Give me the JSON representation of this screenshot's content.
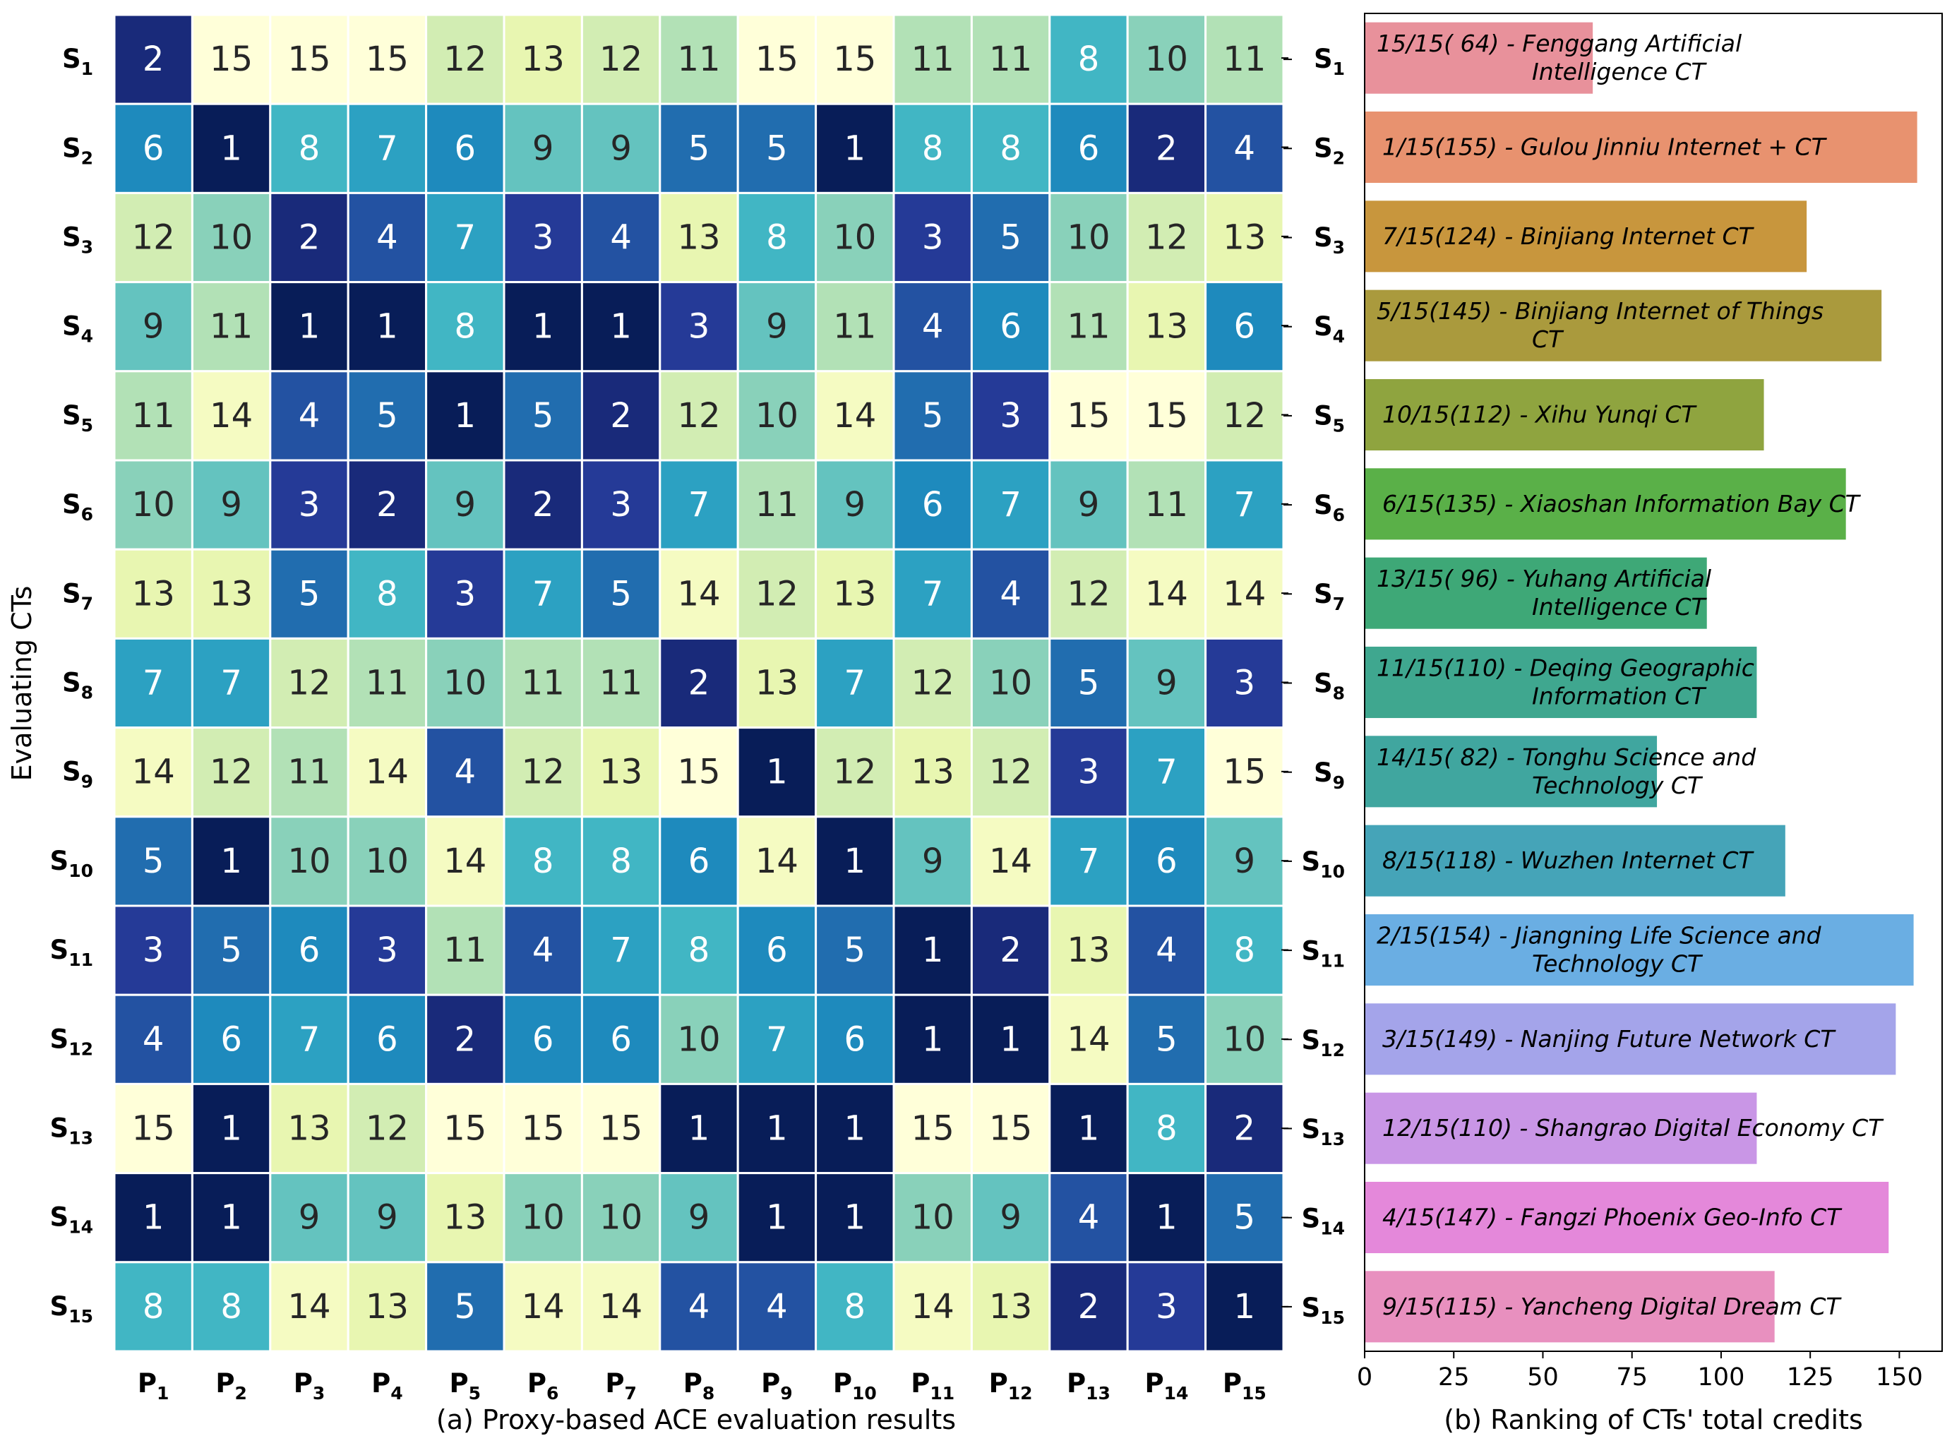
{
  "chart_data": [
    {
      "type": "heatmap",
      "title": "(a) Proxy-based ACE evaluation results",
      "ylabel": "Evaluating CTs",
      "rows": [
        "S1",
        "S2",
        "S3",
        "S4",
        "S5",
        "S6",
        "S7",
        "S8",
        "S9",
        "S10",
        "S11",
        "S12",
        "S13",
        "S14",
        "S15"
      ],
      "cols": [
        "P1",
        "P2",
        "P3",
        "P4",
        "P5",
        "P6",
        "P7",
        "P8",
        "P9",
        "P10",
        "P11",
        "P12",
        "P13",
        "P14",
        "P15"
      ],
      "values": [
        [
          2,
          15,
          15,
          15,
          12,
          13,
          12,
          11,
          15,
          15,
          11,
          11,
          8,
          10,
          11
        ],
        [
          6,
          1,
          8,
          7,
          6,
          9,
          9,
          5,
          5,
          1,
          8,
          8,
          6,
          2,
          4
        ],
        [
          12,
          10,
          2,
          4,
          7,
          3,
          4,
          13,
          8,
          10,
          3,
          5,
          10,
          12,
          13
        ],
        [
          9,
          11,
          1,
          1,
          8,
          1,
          1,
          3,
          9,
          11,
          4,
          6,
          11,
          13,
          6
        ],
        [
          11,
          14,
          4,
          5,
          1,
          5,
          2,
          12,
          10,
          14,
          5,
          3,
          15,
          15,
          12
        ],
        [
          10,
          9,
          3,
          2,
          9,
          2,
          3,
          7,
          11,
          9,
          6,
          7,
          9,
          11,
          7
        ],
        [
          13,
          13,
          5,
          8,
          3,
          7,
          5,
          14,
          12,
          13,
          7,
          4,
          12,
          14,
          14
        ],
        [
          7,
          7,
          12,
          11,
          10,
          11,
          11,
          2,
          13,
          7,
          12,
          10,
          5,
          9,
          3
        ],
        [
          14,
          12,
          11,
          14,
          4,
          12,
          13,
          15,
          1,
          12,
          13,
          12,
          3,
          7,
          15
        ],
        [
          5,
          1,
          10,
          10,
          14,
          8,
          8,
          6,
          14,
          1,
          9,
          14,
          7,
          6,
          9
        ],
        [
          3,
          5,
          6,
          3,
          11,
          4,
          7,
          8,
          6,
          5,
          1,
          2,
          13,
          4,
          8
        ],
        [
          4,
          6,
          7,
          6,
          2,
          6,
          6,
          10,
          7,
          6,
          1,
          1,
          14,
          5,
          10
        ],
        [
          15,
          1,
          13,
          12,
          15,
          15,
          15,
          1,
          1,
          1,
          15,
          15,
          1,
          8,
          2
        ],
        [
          1,
          1,
          9,
          9,
          13,
          10,
          10,
          9,
          1,
          1,
          10,
          9,
          4,
          1,
          5
        ],
        [
          8,
          8,
          14,
          13,
          5,
          14,
          14,
          4,
          4,
          8,
          14,
          13,
          2,
          3,
          1
        ]
      ],
      "vmin": 1,
      "vmax": 15,
      "colormap": "YlGnBu_r"
    },
    {
      "type": "bar",
      "orientation": "horizontal",
      "title": "(b) Ranking of CTs' total credits",
      "categories": [
        "S1",
        "S2",
        "S3",
        "S4",
        "S5",
        "S6",
        "S7",
        "S8",
        "S9",
        "S10",
        "S11",
        "S12",
        "S13",
        "S14",
        "S15"
      ],
      "values": [
        64,
        155,
        124,
        145,
        112,
        135,
        96,
        110,
        82,
        118,
        154,
        149,
        110,
        147,
        115
      ],
      "labels": [
        [
          "15/15( 64) - Fenggang Artificial",
          "Intelligence CT"
        ],
        [
          "1/15(155) - Gulou Jinniu Internet + CT"
        ],
        [
          "7/15(124) - Binjiang Internet CT"
        ],
        [
          "5/15(145) - Binjiang Internet of Things",
          "CT"
        ],
        [
          "10/15(112) - Xihu Yunqi CT"
        ],
        [
          "6/15(135) - Xiaoshan Information Bay CT"
        ],
        [
          "13/15( 96) - Yuhang Artificial",
          "Intelligence CT"
        ],
        [
          "11/15(110) - Deqing Geographic",
          "Information CT"
        ],
        [
          "14/15( 82) - Tonghu Science and",
          "Technology CT"
        ],
        [
          "8/15(118) - Wuzhen Internet CT"
        ],
        [
          "2/15(154) - Jiangning Life Science and",
          "Technology CT"
        ],
        [
          "3/15(149) - Nanjing Future Network CT"
        ],
        [
          "12/15(110) - Shangrao Digital Economy CT"
        ],
        [
          "4/15(147) - Fangzi Phoenix Geo-Info CT"
        ],
        [
          "9/15(115) - Yancheng Digital Dream CT"
        ]
      ],
      "colors": [
        "#e8919b",
        "#e8926f",
        "#c8963d",
        "#aa9a3d",
        "#8fa43f",
        "#5ab048",
        "#3ea877",
        "#3fa78f",
        "#40a69f",
        "#45a4b8",
        "#6aaee3",
        "#a4a4ea",
        "#c996e6",
        "#e488da",
        "#e890bf"
      ],
      "xticks": [
        0,
        25,
        50,
        75,
        100,
        125,
        150
      ],
      "xlim": [
        0,
        162
      ]
    }
  ]
}
